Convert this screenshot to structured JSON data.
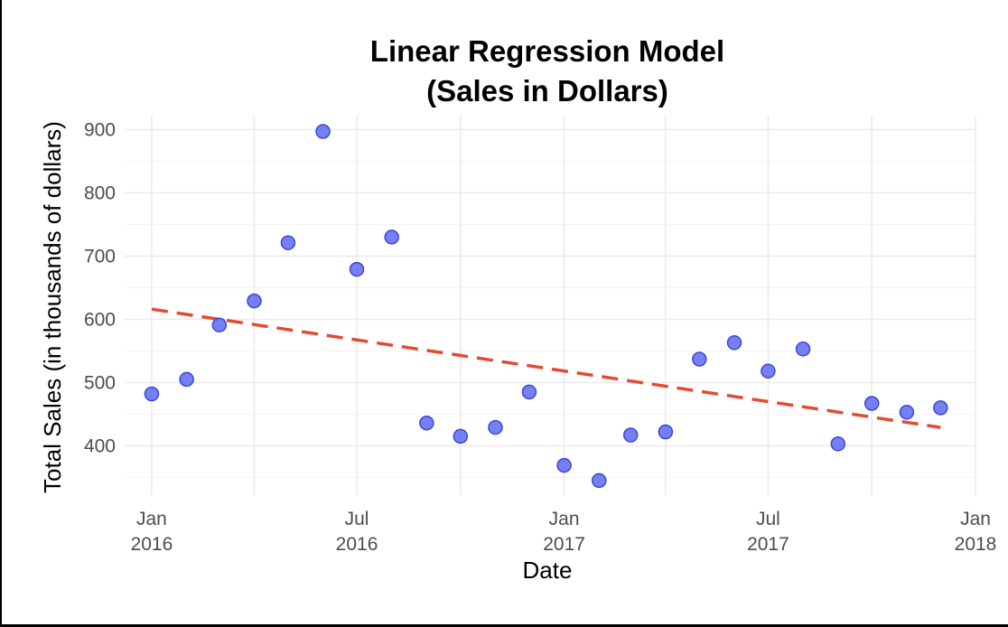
{
  "chart_data": {
    "type": "scatter",
    "title_lines": [
      "Linear Regression Model",
      "(Sales in Dollars)"
    ],
    "xlabel": "Date",
    "ylabel": "Total Sales (in thousands of dollars)",
    "x_ticks": [
      {
        "date": "2016-01-01",
        "label_lines": [
          "Jan",
          "2016"
        ]
      },
      {
        "date": "2016-07-01",
        "label_lines": [
          "Jul",
          "2016"
        ]
      },
      {
        "date": "2017-01-01",
        "label_lines": [
          "Jan",
          "2017"
        ]
      },
      {
        "date": "2017-07-01",
        "label_lines": [
          "Jul",
          "2017"
        ]
      },
      {
        "date": "2018-01-01",
        "label_lines": [
          "Jan",
          "2018"
        ]
      }
    ],
    "y_ticks": [
      400,
      500,
      600,
      700,
      800,
      900
    ],
    "xlim": [
      "2015-12-08",
      "2018-01-01"
    ],
    "ylim": [
      322,
      922
    ],
    "grid": true,
    "points": {
      "color": "#4f5bf0",
      "x": [
        "2016-01-01",
        "2016-02-01",
        "2016-03-01",
        "2016-04-01",
        "2016-05-01",
        "2016-06-01",
        "2016-07-01",
        "2016-08-01",
        "2016-09-01",
        "2016-10-01",
        "2016-11-01",
        "2016-12-01",
        "2017-01-01",
        "2017-02-01",
        "2017-03-01",
        "2017-04-01",
        "2017-05-01",
        "2017-06-01",
        "2017-07-01",
        "2017-08-01",
        "2017-09-01",
        "2017-10-01",
        "2017-11-01",
        "2017-12-01"
      ],
      "y": [
        482,
        505,
        591,
        629,
        721,
        897,
        679,
        730,
        436,
        415,
        429,
        485,
        369,
        345,
        417,
        422,
        537,
        563,
        518,
        553,
        403,
        467,
        453,
        460
      ]
    },
    "trend_line": {
      "color": "#e34a33",
      "style": "dashed",
      "x": [
        "2016-01-01",
        "2017-12-01"
      ],
      "y": [
        616,
        429
      ]
    }
  }
}
